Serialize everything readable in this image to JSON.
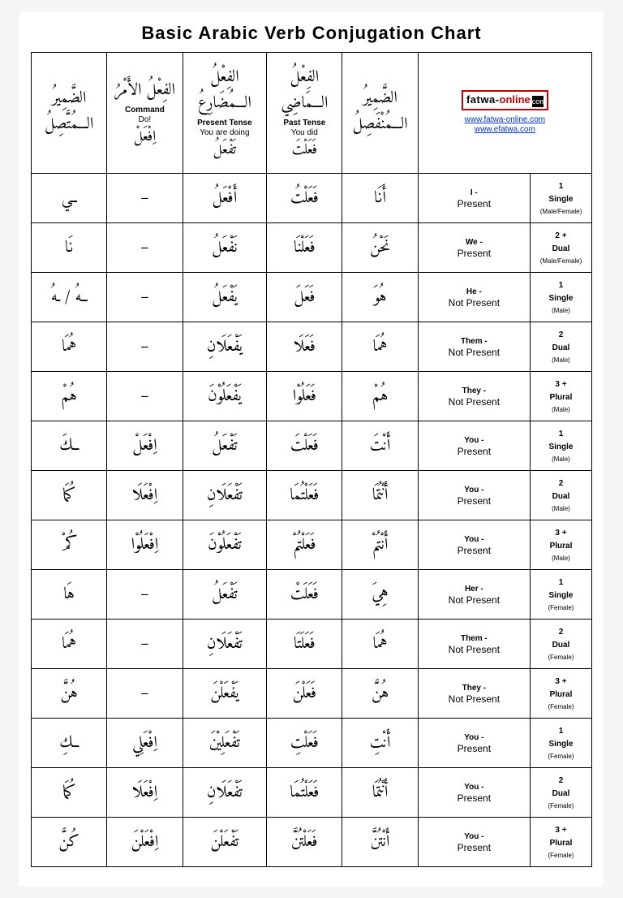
{
  "title": "Basic Arabic Verb Conjugation Chart",
  "logo": {
    "part1": "fatwa-",
    "part2": "online",
    "dot": "com"
  },
  "links": [
    "www.fatwa-online.com",
    "www.efatwa.com"
  ],
  "headers": [
    {
      "ar_top": "الضَّمِيرُ\nالـــمُتَّصِلُ",
      "en1": "",
      "en2": "",
      "ar_bot": ""
    },
    {
      "ar_top": "الفِعْلُ\nالأَمْرُ",
      "en1": "Command",
      "en2": "Do!",
      "ar_bot": "اِفْعَلْ"
    },
    {
      "ar_top": "الفِعْلُ\nالـــمُضَارِعُ",
      "en1": "Present Tense",
      "en2": "You are doing",
      "ar_bot": "تَفْعَلُ"
    },
    {
      "ar_top": "الفِعْلُ\nالـــمَاضِي",
      "en1": "Past Tense",
      "en2": "You did",
      "ar_bot": "فَعَلْتَ"
    },
    {
      "ar_top": "الضَّمِيرُ\nالـــمُنْفَصِلُ",
      "en1": "",
      "en2": "",
      "ar_bot": ""
    }
  ],
  "rows": [
    {
      "sec": true,
      "c1": "ــي",
      "c2": "–",
      "c3": "أَفْعَلُ",
      "c4": "فَعَلْتُ",
      "c5": "أَنَا",
      "p": "I -",
      "ps": "Present",
      "n": "1",
      "t": "Single",
      "g": "(Male/Female)"
    },
    {
      "sec": false,
      "c1": "نَا",
      "c2": "–",
      "c3": "نَفْعَلُ",
      "c4": "فَعَلْنَا",
      "c5": "نَحْنُ",
      "p": "We -",
      "ps": "Present",
      "n": "2 +",
      "t": "Dual",
      "g": "(Male/Female)"
    },
    {
      "sec": true,
      "c1": "ــهُ / ـهُ",
      "c2": "–",
      "c3": "يَفْعَلُ",
      "c4": "فَعَلَ",
      "c5": "هُوَ",
      "p": "He -",
      "ps": "Not Present",
      "n": "1",
      "t": "Single",
      "g": "(Male)"
    },
    {
      "sec": false,
      "c1": "هُمَا",
      "c2": "–",
      "c3": "يَفْعَلَانِ",
      "c4": "فَعَلَا",
      "c5": "هُمَا",
      "p": "Them -",
      "ps": "Not Present",
      "n": "2",
      "t": "Dual",
      "g": "(Male)"
    },
    {
      "sec": false,
      "c1": "هُمْ",
      "c2": "–",
      "c3": "يَفْعَلُوْنَ",
      "c4": "فَعَلُوْا",
      "c5": "هُمْ",
      "p": "They -",
      "ps": "Not Present",
      "n": "3 +",
      "t": "Plural",
      "g": "(Male)"
    },
    {
      "sec": false,
      "c1": "ــكَ",
      "c2": "اِفْعَلْ",
      "c3": "تَفْعَلُ",
      "c4": "فَعَلْتَ",
      "c5": "أَنْتَ",
      "p": "You -",
      "ps": "Present",
      "n": "1",
      "t": "Single",
      "g": "(Male)"
    },
    {
      "sec": false,
      "c1": "كُمَا",
      "c2": "اِفْعَلَا",
      "c3": "تَفْعَلَانِ",
      "c4": "فَعَلْتُمَا",
      "c5": "أَنْتُمَا",
      "p": "You -",
      "ps": "Present",
      "n": "2",
      "t": "Dual",
      "g": "(Male)"
    },
    {
      "sec": false,
      "c1": "كُمْ",
      "c2": "اِفْعَلُوْا",
      "c3": "تَفْعَلُوْنَ",
      "c4": "فَعَلْتُمْ",
      "c5": "أَنْتُمْ",
      "p": "You -",
      "ps": "Present",
      "n": "3 +",
      "t": "Plural",
      "g": "(Male)"
    },
    {
      "sec": true,
      "c1": "هَا",
      "c2": "–",
      "c3": "تَفْعَلُ",
      "c4": "فَعَلَتْ",
      "c5": "هِيَ",
      "p": "Her -",
      "ps": "Not Present",
      "n": "1",
      "t": "Single",
      "g": "(Female)"
    },
    {
      "sec": false,
      "c1": "هُمَا",
      "c2": "–",
      "c3": "تَفْعَلَانِ",
      "c4": "فَعَلَتَا",
      "c5": "هُمَا",
      "p": "Them -",
      "ps": "Not Present",
      "n": "2",
      "t": "Dual",
      "g": "(Female)"
    },
    {
      "sec": false,
      "c1": "هُنَّ",
      "c2": "–",
      "c3": "يَفْعَلْنَ",
      "c4": "فَعَلْنَ",
      "c5": "هُنَّ",
      "p": "They -",
      "ps": "Not Present",
      "n": "3 +",
      "t": "Plural",
      "g": "(Female)"
    },
    {
      "sec": false,
      "c1": "ــكِ",
      "c2": "اِفْعَلِي",
      "c3": "تَفْعَلِيْنَ",
      "c4": "فَعَلْتِ",
      "c5": "أَنْتِ",
      "p": "You -",
      "ps": "Present",
      "n": "1",
      "t": "Single",
      "g": "(Female)"
    },
    {
      "sec": false,
      "c1": "كُمَا",
      "c2": "اِفْعَلَا",
      "c3": "تَفْعَلَانِ",
      "c4": "فَعَلْتُمَا",
      "c5": "أَنْتُمَا",
      "p": "You -",
      "ps": "Present",
      "n": "2",
      "t": "Dual",
      "g": "(Female)"
    },
    {
      "sec": false,
      "c1": "كُنَّ",
      "c2": "اِفْعَلْنَ",
      "c3": "تَفْعَلْنَ",
      "c4": "فَعَلْتُنَّ",
      "c5": "أَنْتُنَّ",
      "p": "You -",
      "ps": "Present",
      "n": "3 +",
      "t": "Plural",
      "g": "(Female)"
    }
  ]
}
